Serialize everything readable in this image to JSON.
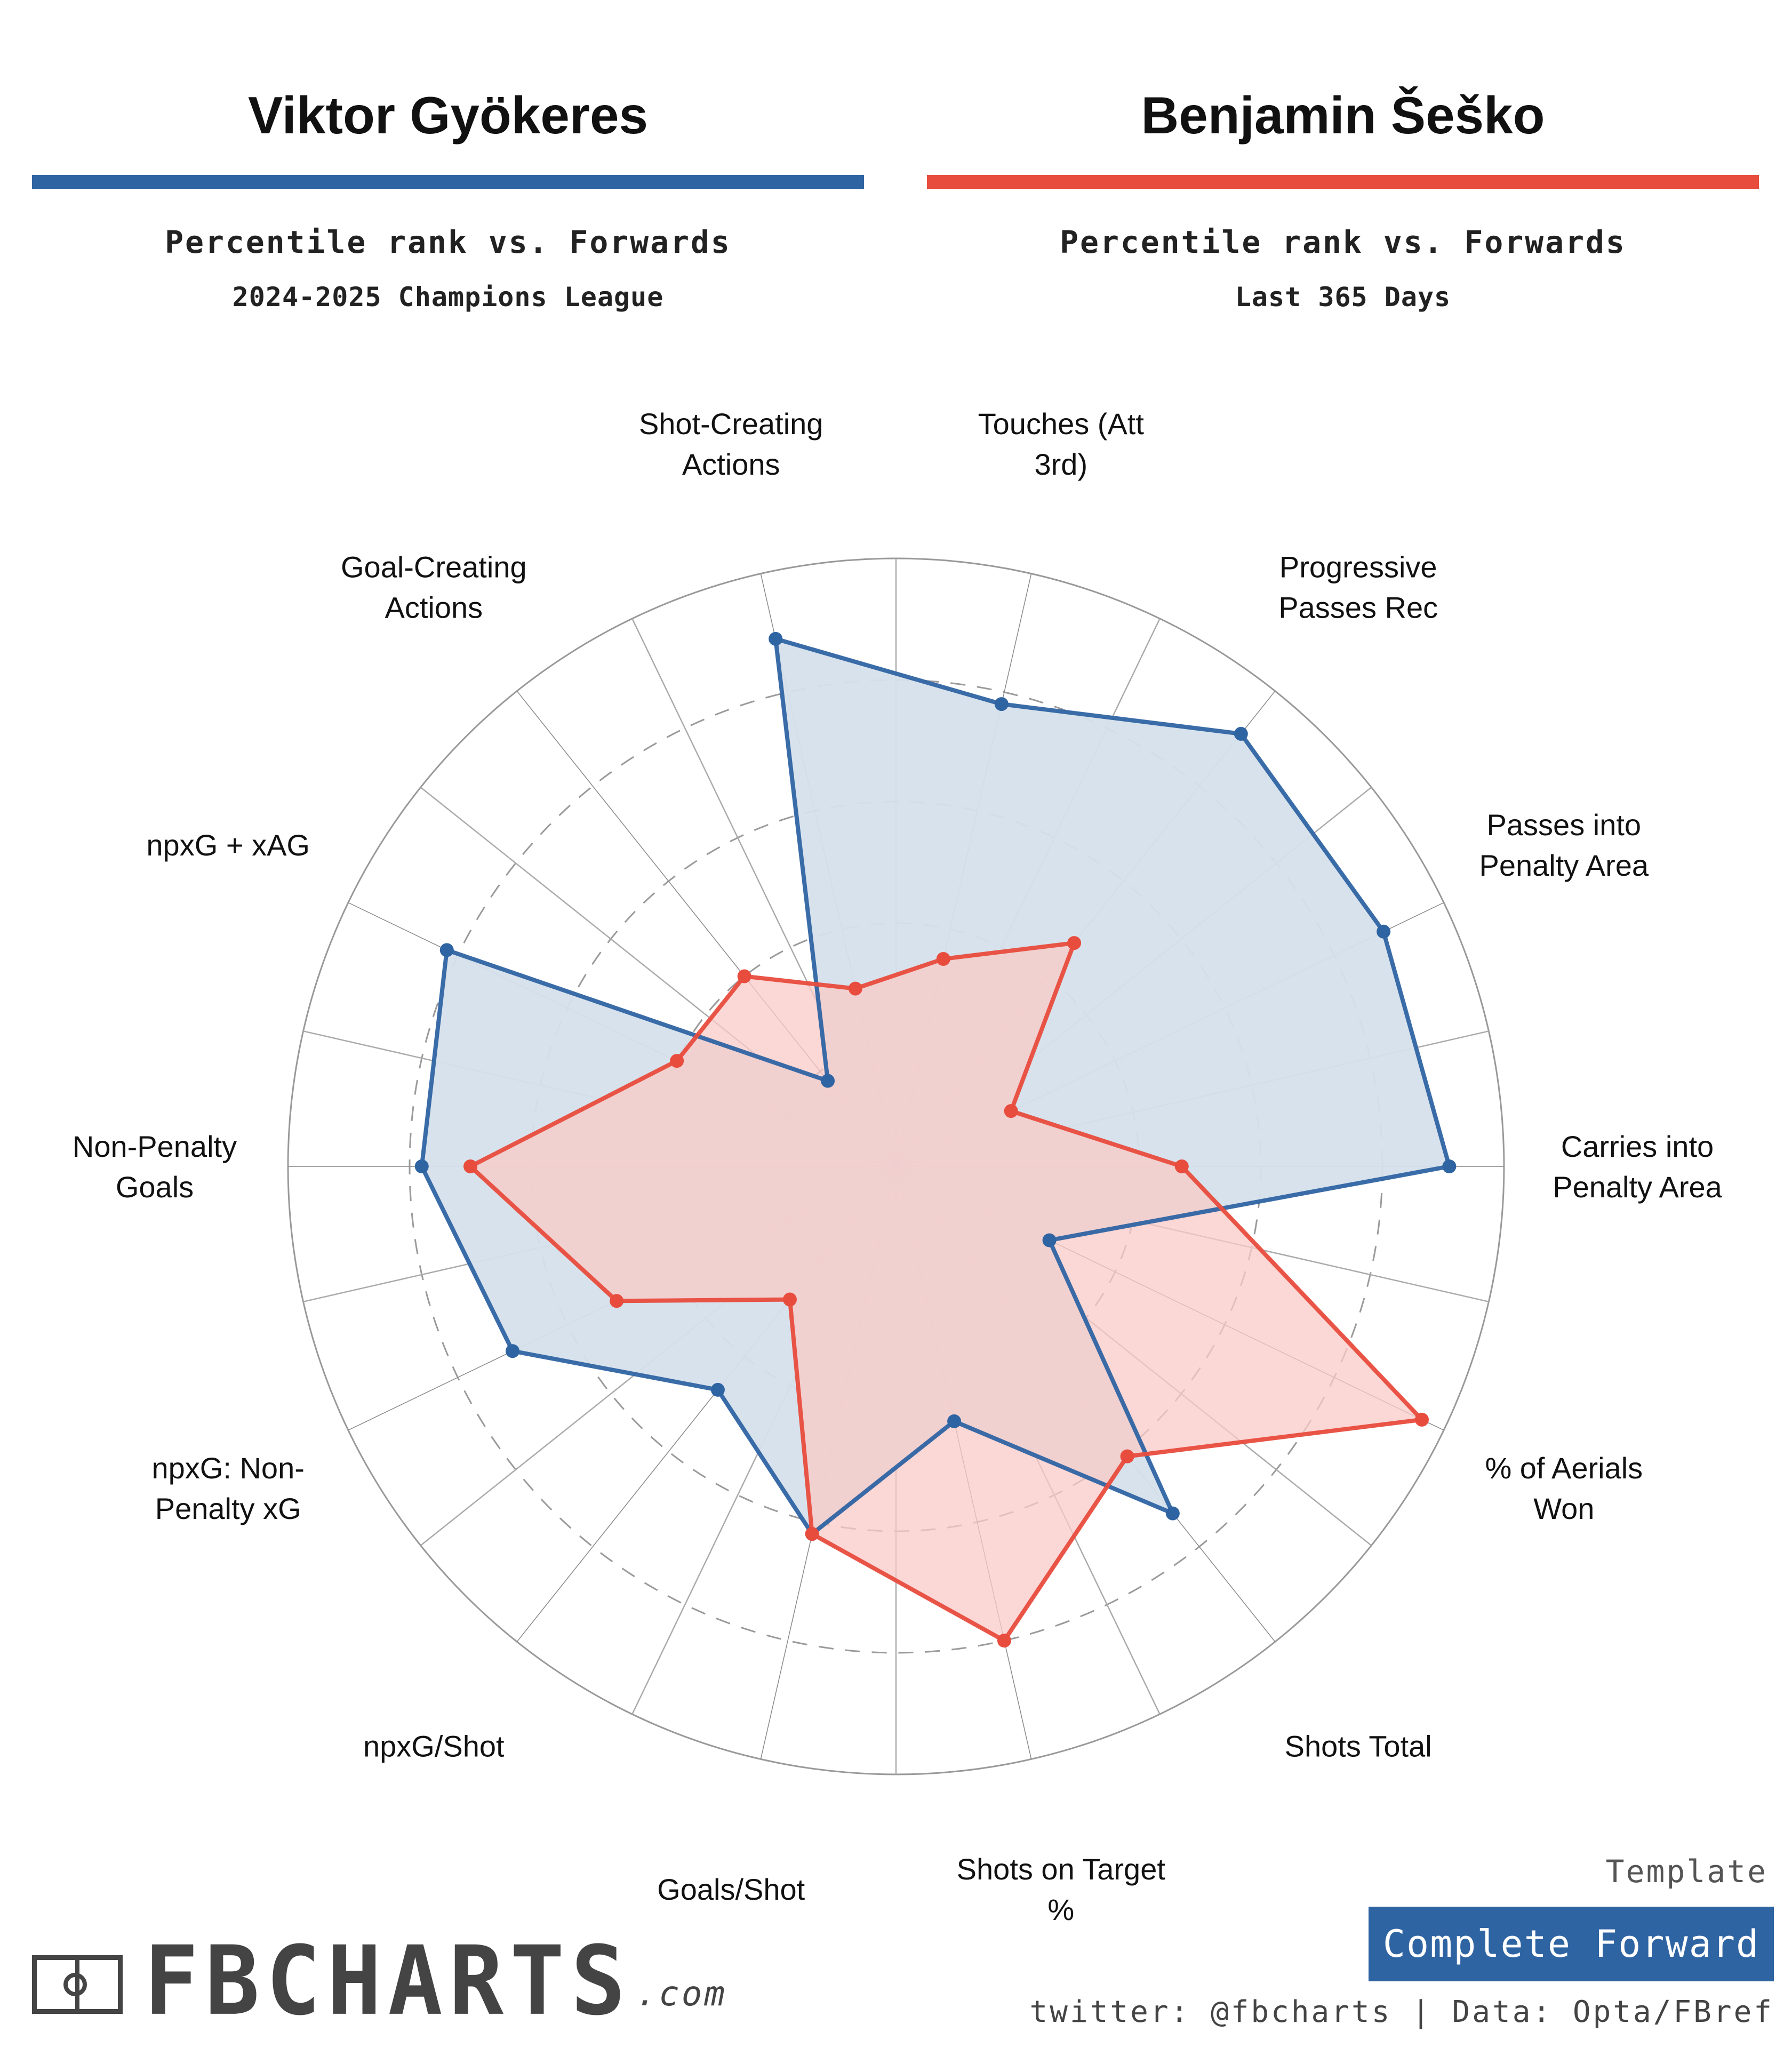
{
  "players": [
    {
      "name": "Viktor Gyökeres",
      "subtitle": "Percentile rank vs. Forwards",
      "competition": "2024-2025 Champions League",
      "color": "#2f64a3",
      "fill": "#d6e0eb"
    },
    {
      "name": "Benjamin Šeško",
      "subtitle": "Percentile rank vs. Forwards",
      "competition": "Last 365 Days",
      "color": "#e84c3d",
      "fill": "#f9c9c7"
    }
  ],
  "chart_data": {
    "type": "radar",
    "grid": true,
    "rlim": [
      0,
      100
    ],
    "categories": [
      "Carries into Penalty Area",
      "% of Aerials Won",
      "Shots Total",
      "Shots on Target %",
      "Goals/Shot",
      "npxG/Shot",
      "npxG: Non-Penalty xG",
      "Non-Penalty Goals",
      "npxG + xAG",
      "Goal-Creating Actions",
      "Shot-Creating Actions",
      "Touches (Att 3rd)",
      "Progressive Passes Rec",
      "Passes into Penalty Area"
    ],
    "category_lines": [
      [
        "Carries into",
        "Penalty Area"
      ],
      [
        "% of Aerials",
        "Won"
      ],
      [
        "Shots Total"
      ],
      [
        "Shots on Target",
        "%"
      ],
      [
        "Goals/Shot"
      ],
      [
        "npxG/Shot"
      ],
      [
        "npxG: Non-",
        "Penalty xG"
      ],
      [
        "Non-Penalty",
        "Goals"
      ],
      [
        "npxG + xAG"
      ],
      [
        "Goal-Creating",
        "Actions"
      ],
      [
        "Shot-Creating",
        "Actions"
      ],
      [
        "Touches (Att",
        "3rd)"
      ],
      [
        "Progressive",
        "Passes Rec"
      ],
      [
        "Passes into",
        "Penalty Area"
      ]
    ],
    "series": [
      {
        "name": "Viktor Gyökeres",
        "values": [
          91,
          28,
          73,
          43,
          62,
          47,
          70,
          78,
          82,
          18,
          89,
          78,
          91,
          89
        ]
      },
      {
        "name": "Benjamin Šeško",
        "values": [
          47,
          96,
          61,
          80,
          62,
          28,
          51,
          70,
          40,
          40,
          30,
          35,
          47,
          21
        ]
      }
    ]
  },
  "footer": {
    "template_label": "Template",
    "template_name": "Complete Forward",
    "credit": "twitter: @fbcharts | Data: Opta/FBref",
    "logo_text": "FBCHARTS",
    "logo_suffix": ".com"
  }
}
